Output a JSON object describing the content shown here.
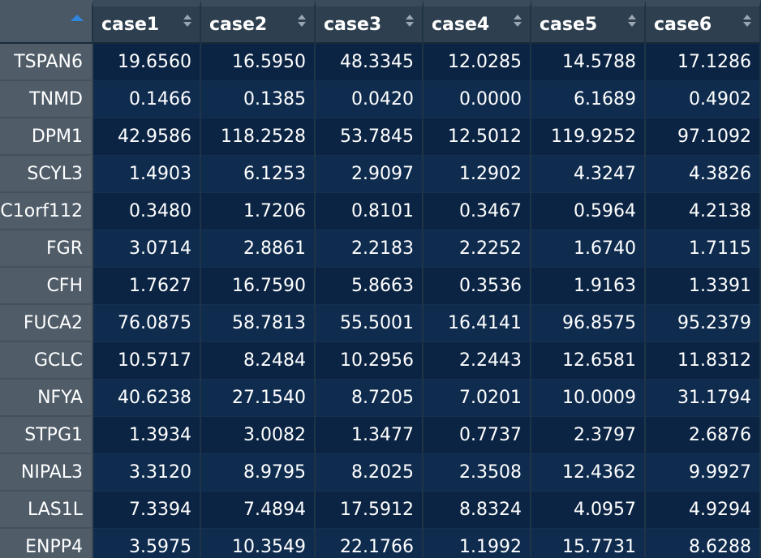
{
  "table": {
    "columns": [
      "case1",
      "case2",
      "case3",
      "case4",
      "case5",
      "case6"
    ],
    "rows": [
      {
        "name": "TSPAN6",
        "values": [
          "19.6560",
          "16.5950",
          "48.3345",
          "12.0285",
          "14.5788",
          "17.1286"
        ]
      },
      {
        "name": "TNMD",
        "values": [
          "0.1466",
          "0.1385",
          "0.0420",
          "0.0000",
          "6.1689",
          "0.4902"
        ]
      },
      {
        "name": "DPM1",
        "values": [
          "42.9586",
          "118.2528",
          "53.7845",
          "12.5012",
          "119.9252",
          "97.1092"
        ]
      },
      {
        "name": "SCYL3",
        "values": [
          "1.4903",
          "6.1253",
          "2.9097",
          "1.2902",
          "4.3247",
          "4.3826"
        ]
      },
      {
        "name": "C1orf112",
        "values": [
          "0.3480",
          "1.7206",
          "0.8101",
          "0.3467",
          "0.5964",
          "4.2138"
        ]
      },
      {
        "name": "FGR",
        "values": [
          "3.0714",
          "2.8861",
          "2.2183",
          "2.2252",
          "1.6740",
          "1.7115"
        ]
      },
      {
        "name": "CFH",
        "values": [
          "1.7627",
          "16.7590",
          "5.8663",
          "0.3536",
          "1.9163",
          "1.3391"
        ]
      },
      {
        "name": "FUCA2",
        "values": [
          "76.0875",
          "58.7813",
          "55.5001",
          "16.4141",
          "96.8575",
          "95.2379"
        ]
      },
      {
        "name": "GCLC",
        "values": [
          "10.5717",
          "8.2484",
          "10.2956",
          "2.2443",
          "12.6581",
          "11.8312"
        ]
      },
      {
        "name": "NFYA",
        "values": [
          "40.6238",
          "27.1540",
          "8.7205",
          "7.0201",
          "10.0009",
          "31.1794"
        ]
      },
      {
        "name": "STPG1",
        "values": [
          "1.3934",
          "3.0082",
          "1.3477",
          "0.7737",
          "2.3797",
          "2.6876"
        ]
      },
      {
        "name": "NIPAL3",
        "values": [
          "3.3120",
          "8.9795",
          "8.2025",
          "2.3508",
          "12.4362",
          "9.9927"
        ]
      },
      {
        "name": "LAS1L",
        "values": [
          "7.3394",
          "7.4894",
          "17.5912",
          "8.8324",
          "4.0957",
          "4.9294"
        ]
      },
      {
        "name": "ENPP4",
        "values": [
          "3.5975",
          "10.3549",
          "22.1766",
          "1.1992",
          "15.7731",
          "8.6288"
        ]
      }
    ]
  },
  "colors": {
    "sort_active": "#2e86de",
    "body_dark": "#0b2443",
    "body_light": "#0f2c4f",
    "rowname_bg": "#505d69",
    "header_bg": "#2e4050"
  }
}
